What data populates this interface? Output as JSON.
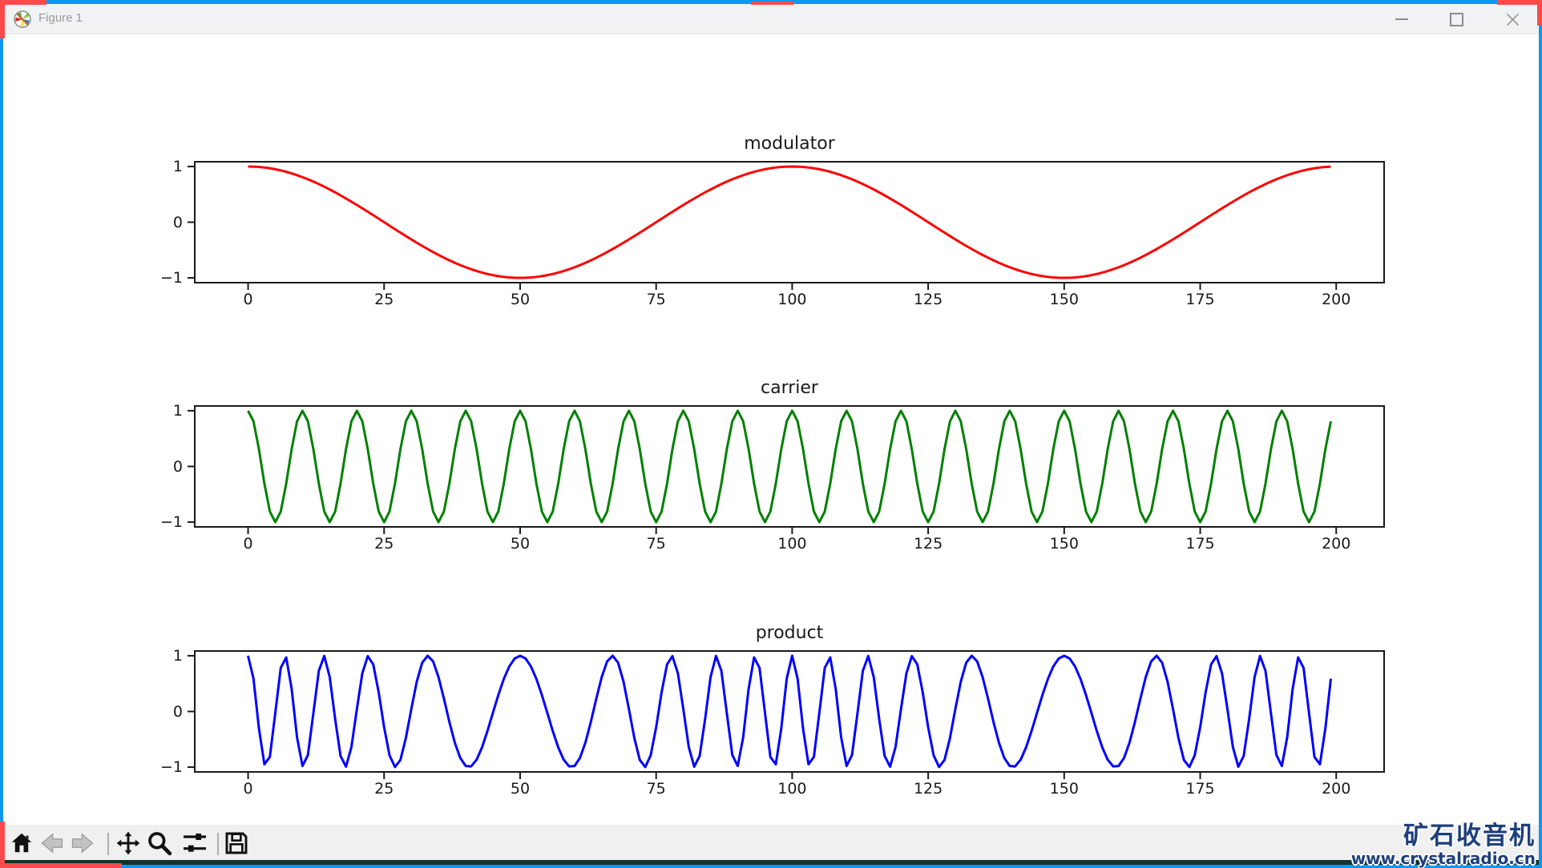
{
  "window": {
    "title": "Figure 1",
    "icon": "matplotlib-logo-icon",
    "controls": {
      "minimize": "minimize",
      "maximize": "maximize",
      "close": "close"
    },
    "border_color": "#0d97f0",
    "highlight_mark_color": "#fa4a4c"
  },
  "toolbar": {
    "buttons": [
      {
        "name": "home",
        "enabled": true
      },
      {
        "name": "back",
        "enabled": false
      },
      {
        "name": "forward",
        "enabled": false
      },
      {
        "name": "pan",
        "enabled": true
      },
      {
        "name": "zoom-to-rect",
        "enabled": true
      },
      {
        "name": "configure-subplots",
        "enabled": true
      },
      {
        "name": "save-figure",
        "enabled": true
      }
    ]
  },
  "watermark": {
    "line1": "矿石收音机",
    "line2": "www.crystalradio.cn"
  },
  "chart_data": [
    {
      "type": "line",
      "title": "modulator",
      "color": "#ff0000",
      "n_points": 200,
      "x_description": "integer samples 0-199",
      "xlim": [
        -9.95,
        208.95
      ],
      "ylim": [
        -1.1,
        1.1
      ],
      "xticks": [
        0,
        25,
        50,
        75,
        100,
        125,
        150,
        175,
        200
      ],
      "xticklabels": [
        "0",
        "25",
        "50",
        "75",
        "100",
        "125",
        "150",
        "175",
        "200"
      ],
      "yticks": [
        1,
        0,
        -1
      ],
      "yticklabels": [
        "1",
        "0",
        "−1"
      ],
      "grid": false,
      "legend": null,
      "formula": {
        "kind": "cosine",
        "period": 100,
        "amplitude": 1,
        "expression": "cos(2π·x/100)"
      }
    },
    {
      "type": "line",
      "title": "carrier",
      "color": "#008000",
      "n_points": 200,
      "x_description": "integer samples 0-199",
      "xlim": [
        -9.95,
        208.95
      ],
      "ylim": [
        -1.1,
        1.1
      ],
      "xticks": [
        0,
        25,
        50,
        75,
        100,
        125,
        150,
        175,
        200
      ],
      "xticklabels": [
        "0",
        "25",
        "50",
        "75",
        "100",
        "125",
        "150",
        "175",
        "200"
      ],
      "yticks": [
        1,
        0,
        -1
      ],
      "yticklabels": [
        "1",
        "0",
        "−1"
      ],
      "grid": false,
      "legend": null,
      "formula": {
        "kind": "cosine",
        "period": 10,
        "amplitude": 1,
        "expression": "cos(2π·x/10)"
      }
    },
    {
      "type": "line",
      "title": "product",
      "color": "#0000ff",
      "n_points": 200,
      "x_description": "integer samples 0-199",
      "xlim": [
        -9.95,
        208.95
      ],
      "ylim": [
        -1.1,
        1.1
      ],
      "xticks": [
        0,
        25,
        50,
        75,
        100,
        125,
        150,
        175,
        200
      ],
      "xticklabels": [
        "0",
        "25",
        "50",
        "75",
        "100",
        "125",
        "150",
        "175",
        "200"
      ],
      "yticks": [
        1,
        0,
        -1
      ],
      "yticklabels": [
        "1",
        "0",
        "−1"
      ],
      "grid": false,
      "legend": null,
      "formula": {
        "kind": "fm",
        "carrier_period": 10,
        "modulator_period": 100,
        "modulation_index": 5,
        "expression": "cos(2π·x/10 + 5·sin(2π·x/100))"
      }
    }
  ]
}
